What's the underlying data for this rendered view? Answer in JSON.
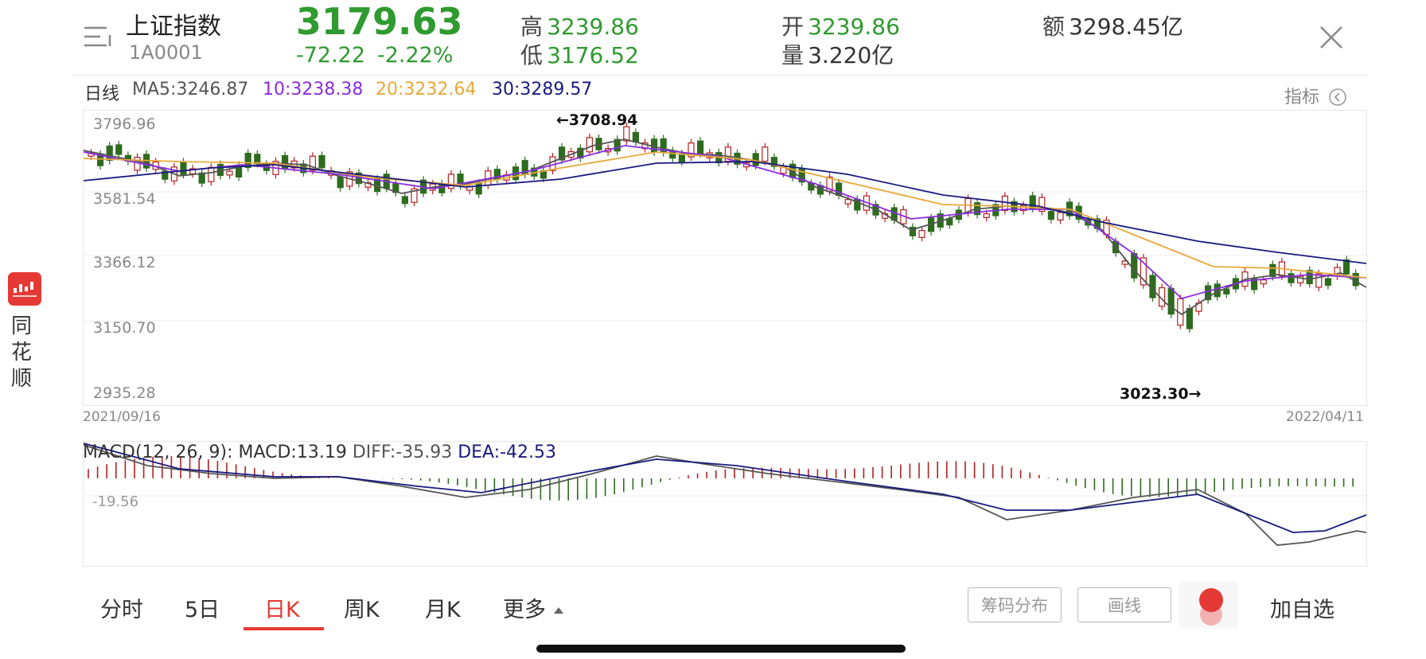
{
  "header": {
    "stock_name": "上证指数",
    "stock_code": "1A0001",
    "last_price": "3179.63",
    "change_abs": "-72.22",
    "change_pct": "-2.22%",
    "high_label": "高",
    "high_value": "3239.86",
    "low_label": "低",
    "low_value": "3176.52",
    "open_label": "开",
    "open_value": "3239.86",
    "volume_label": "量",
    "volume_value": "3.220亿",
    "amount_label": "额",
    "amount_value": "3298.45亿"
  },
  "indicators": {
    "period_label": "日线",
    "ma5": "MA5:3246.87",
    "ma10": "10:3238.38",
    "ma20": "20:3232.64",
    "ma30": "30:3289.57",
    "settings_label": "指标"
  },
  "kline": {
    "y_ticks": [
      "3796.96",
      "3581.54",
      "3366.12",
      "3150.70",
      "2935.28"
    ],
    "max_annotation": "←3708.94",
    "min_annotation": "3023.30→",
    "start_date": "2021/09/16",
    "end_date": "2022/04/11"
  },
  "macd": {
    "label": "MACD(12, 26, 9):",
    "macd_value": "MACD:13.19",
    "diff_value": "DIFF:-35.93",
    "dea_value": "DEA:-42.53",
    "y_tick": "-19.56"
  },
  "colors": {
    "up": "#b22222",
    "down": "#2e6b1f",
    "ma5": "#555555",
    "ma10": "#8a2be2",
    "ma20": "#e8a838",
    "ma30": "#1a1a80",
    "price_green": "#2f9a2f",
    "accent_red": "#e53935"
  },
  "sidebar_app": {
    "name_chars": [
      "同",
      "花",
      "顺"
    ]
  },
  "bottom_bar": {
    "tabs": [
      "分时",
      "5日",
      "日K",
      "周K",
      "月K",
      "更多"
    ],
    "active_tab": "日K",
    "chip_distribution": "筹码分布",
    "draw_line": "画线",
    "add_watchlist": "加自选"
  }
}
